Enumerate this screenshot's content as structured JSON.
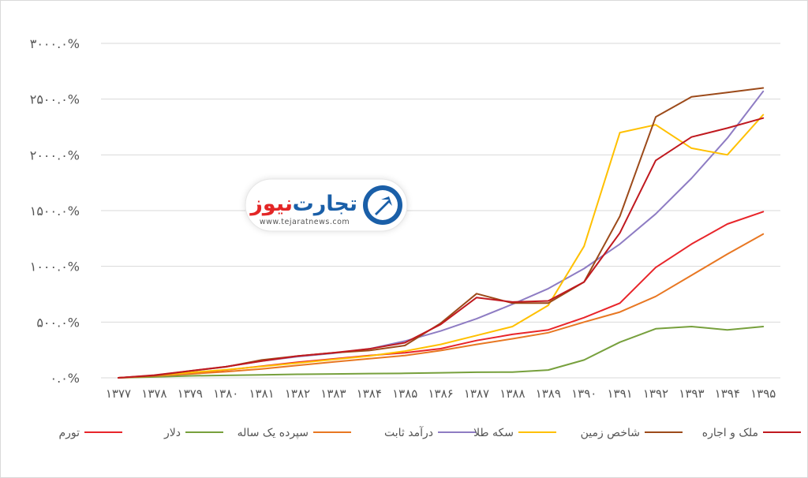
{
  "chart_data": {
    "type": "line",
    "categories": [
      "۱۳۷۷",
      "۱۳۷۸",
      "۱۳۷۹",
      "۱۳۸۰",
      "۱۳۸۱",
      "۱۳۸۲",
      "۱۳۸۳",
      "۱۳۸۴",
      "۱۳۸۵",
      "۱۳۸۶",
      "۱۳۸۷",
      "۱۳۸۸",
      "۱۳۸۹",
      "۱۳۹۰",
      "۱۳۹۱",
      "۱۳۹۲",
      "۱۳۹۳",
      "۱۳۹۴",
      "۱۳۹۵"
    ],
    "y_ticks": [
      {
        "value": 0,
        "label": "۰.۰%"
      },
      {
        "value": 500,
        "label": "۵۰۰.۰%"
      },
      {
        "value": 1000,
        "label": "۱۰۰۰.۰%"
      },
      {
        "value": 1500,
        "label": "۱۵۰۰.۰%"
      },
      {
        "value": 2000,
        "label": "۲۰۰۰.۰%"
      },
      {
        "value": 2500,
        "label": "۲۵۰۰.۰%"
      },
      {
        "value": 3000,
        "label": "۳۰۰۰.۰%"
      }
    ],
    "ylim": [
      0,
      3000
    ],
    "grid": true,
    "legend_position": "bottom",
    "series": [
      {
        "name": "تورم",
        "color": "#e8252a",
        "values": [
          0,
          18,
          42,
          70,
          105,
          140,
          170,
          200,
          225,
          262,
          335,
          390,
          430,
          540,
          670,
          990,
          1200,
          1380,
          1490
        ]
      },
      {
        "name": "دلار",
        "color": "#77a03d",
        "values": [
          0,
          8,
          18,
          22,
          27,
          32,
          35,
          38,
          40,
          45,
          50,
          52,
          70,
          160,
          320,
          440,
          460,
          430,
          460
        ]
      },
      {
        "name": "سپرده یک ساله",
        "color": "#e87722",
        "values": [
          0,
          16,
          35,
          55,
          80,
          112,
          142,
          172,
          200,
          245,
          300,
          350,
          405,
          500,
          590,
          730,
          920,
          1110,
          1290
        ]
      },
      {
        "name": "درآمد ثابت",
        "color": "#8e7cc3",
        "values": [
          0,
          22,
          60,
          100,
          150,
          190,
          220,
          260,
          330,
          420,
          530,
          660,
          800,
          980,
          1200,
          1470,
          1790,
          2150,
          2570
        ]
      },
      {
        "name": "سکه طلا",
        "color": "#ffc000",
        "values": [
          0,
          20,
          48,
          72,
          102,
          132,
          165,
          195,
          240,
          300,
          380,
          460,
          650,
          1180,
          2200,
          2270,
          2060,
          2000,
          2360
        ]
      },
      {
        "name": "شاخص زمین",
        "color": "#9c4a1a",
        "values": [
          0,
          20,
          62,
          98,
          160,
          195,
          225,
          245,
          290,
          490,
          755,
          670,
          670,
          860,
          1450,
          2340,
          2520,
          2560,
          2600
        ]
      },
      {
        "name": "ملک و اجاره",
        "color": "#c0191f",
        "values": [
          0,
          24,
          62,
          100,
          150,
          195,
          225,
          260,
          315,
          480,
          720,
          680,
          690,
          860,
          1300,
          1950,
          2160,
          2240,
          2330
        ]
      }
    ]
  },
  "logo": {
    "name": "تجارت نیوز",
    "name_part1": "تجارت",
    "name_part2": "نیوز",
    "url": "www.tejaratnews.com",
    "primary_color": "#1a5fa8",
    "accent_color": "#e32626"
  }
}
